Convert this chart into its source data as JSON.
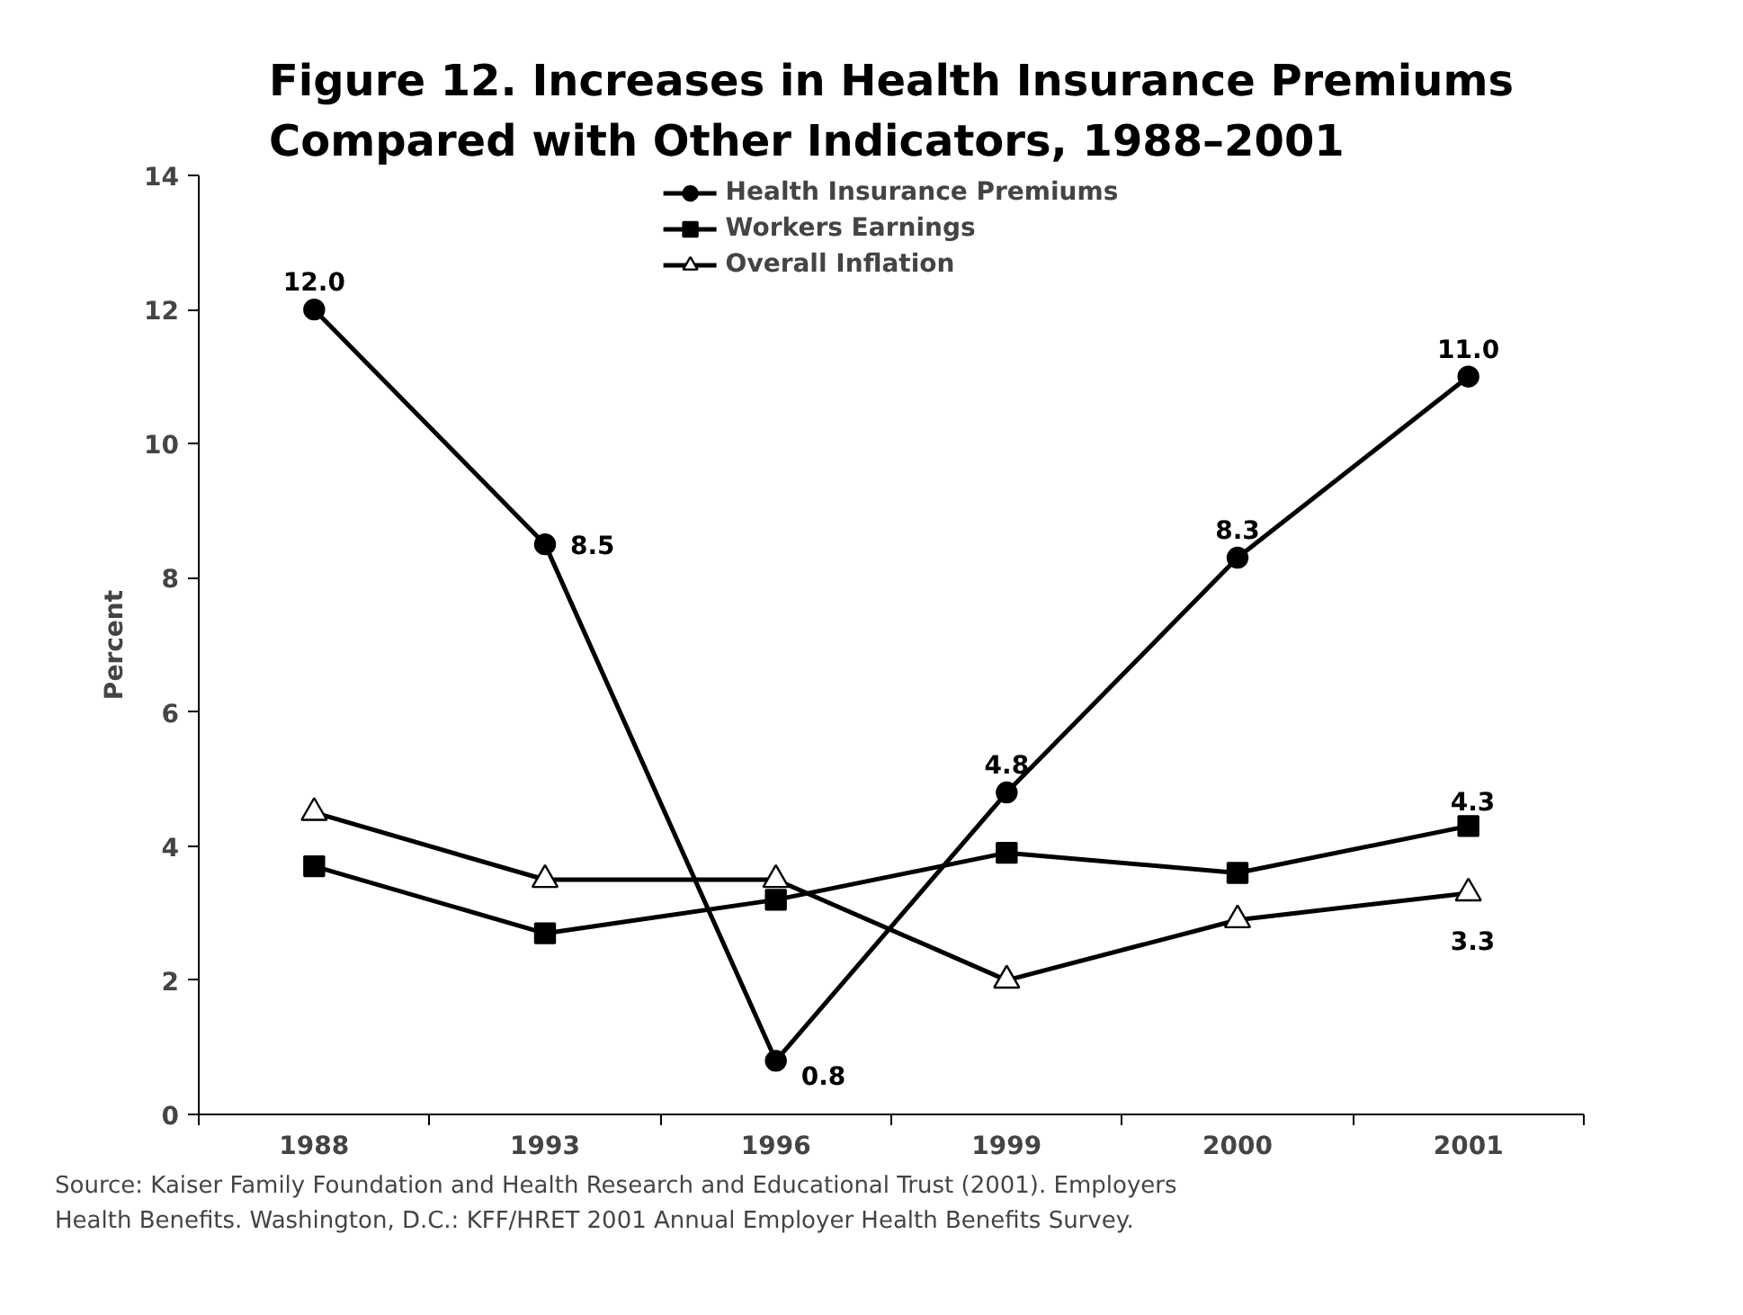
{
  "chart_data": {
    "type": "line",
    "title": "Figure 12. Increases in Health Insurance Premiums\nCompared with Other Indicators, 1988–2001",
    "ylabel": "Percent",
    "categories": [
      "1988",
      "1993",
      "1996",
      "1999",
      "2000",
      "2001"
    ],
    "series": [
      {
        "name": "Health Insurance Premiums",
        "color": "#000000",
        "marker": "circle",
        "values": [
          12.0,
          8.5,
          0.8,
          4.8,
          8.3,
          11.0
        ],
        "value_labels": [
          "12.0",
          "8.5",
          "0.8",
          "4.8",
          "8.3",
          "11.0"
        ]
      },
      {
        "name": "Workers Earnings",
        "color": "#000000",
        "marker": "square",
        "values": [
          3.7,
          2.7,
          3.2,
          3.9,
          3.6,
          4.3
        ],
        "value_labels": [
          null,
          null,
          null,
          null,
          null,
          "4.3"
        ]
      },
      {
        "name": "Overall Inflation",
        "color": "#000000",
        "marker": "triangle",
        "values": [
          4.5,
          3.5,
          3.5,
          2.0,
          2.9,
          3.3
        ],
        "value_labels": [
          null,
          null,
          null,
          null,
          null,
          "3.3"
        ]
      }
    ],
    "ylim": [
      0,
      14
    ],
    "yticks": [
      0,
      2,
      4,
      6,
      8,
      10,
      12,
      14
    ],
    "grid": false,
    "legend": "top",
    "line_style": "solid",
    "annotations": [
      "Source: Kaiser Family Foundation and Health Research and Educational Trust (2001). Employers\nHealth Benefits. Washington, D.C.: KFF/HRET 2001 Annual Employer Health Benefits Survey."
    ]
  }
}
